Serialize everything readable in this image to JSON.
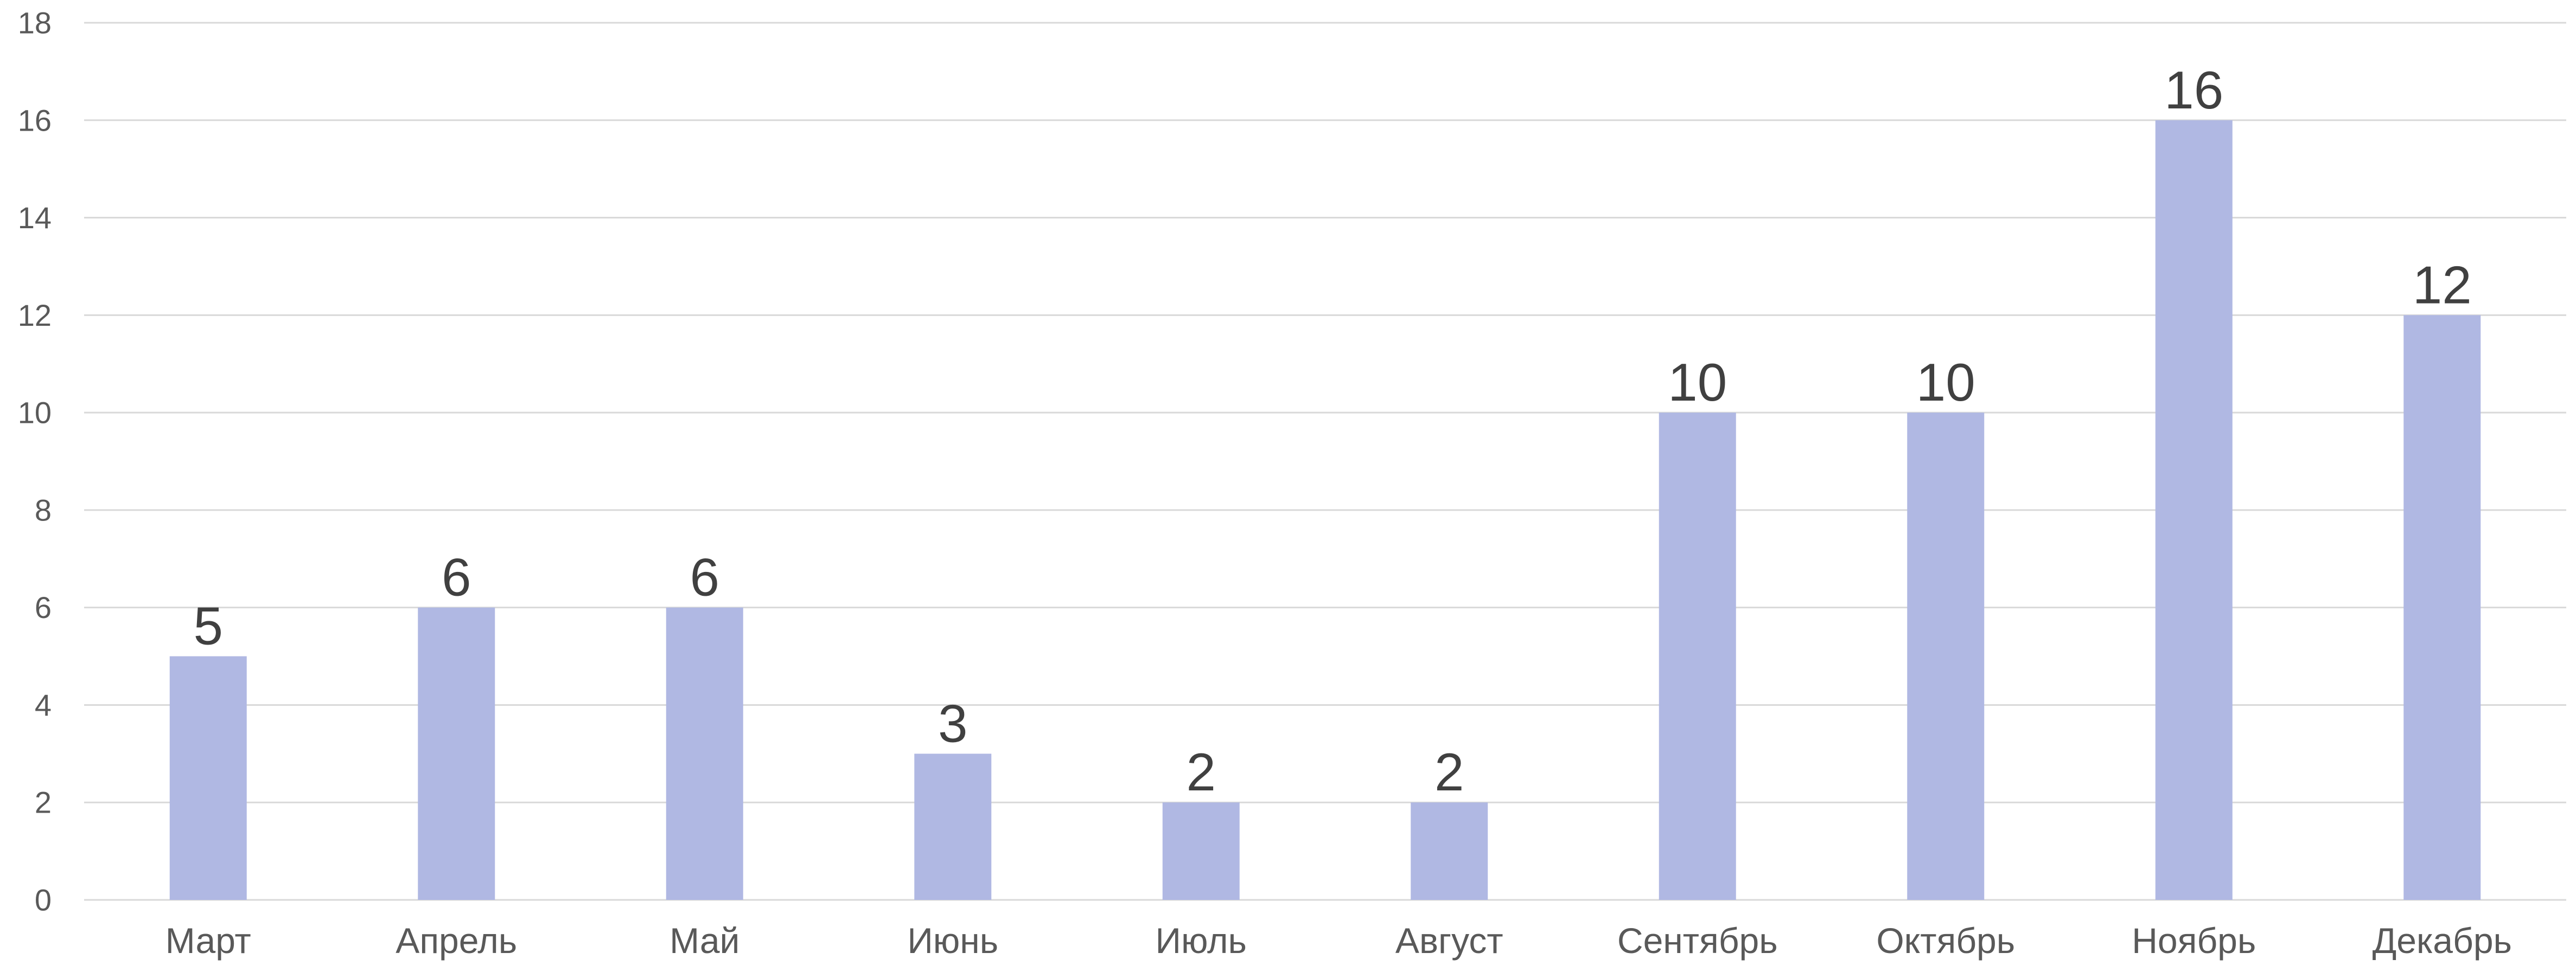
{
  "chart_data": {
    "type": "bar",
    "categories": [
      "Март",
      "Апрель",
      "Май",
      "Июнь",
      "Июль",
      "Август",
      "Сентябрь",
      "Октябрь",
      "Ноябрь",
      "Декабрь"
    ],
    "values": [
      5,
      6,
      6,
      3,
      2,
      2,
      10,
      10,
      16,
      12
    ],
    "ylim": [
      0,
      18
    ],
    "yticks": [
      0,
      2,
      4,
      6,
      8,
      10,
      12,
      14,
      16,
      18
    ],
    "data_labels": true,
    "grid": true,
    "legend": "none",
    "colors": {
      "bar": "#b0b8e3",
      "grid": "#d9d9d9",
      "tick_text": "#595959",
      "label_text": "#404040"
    }
  }
}
